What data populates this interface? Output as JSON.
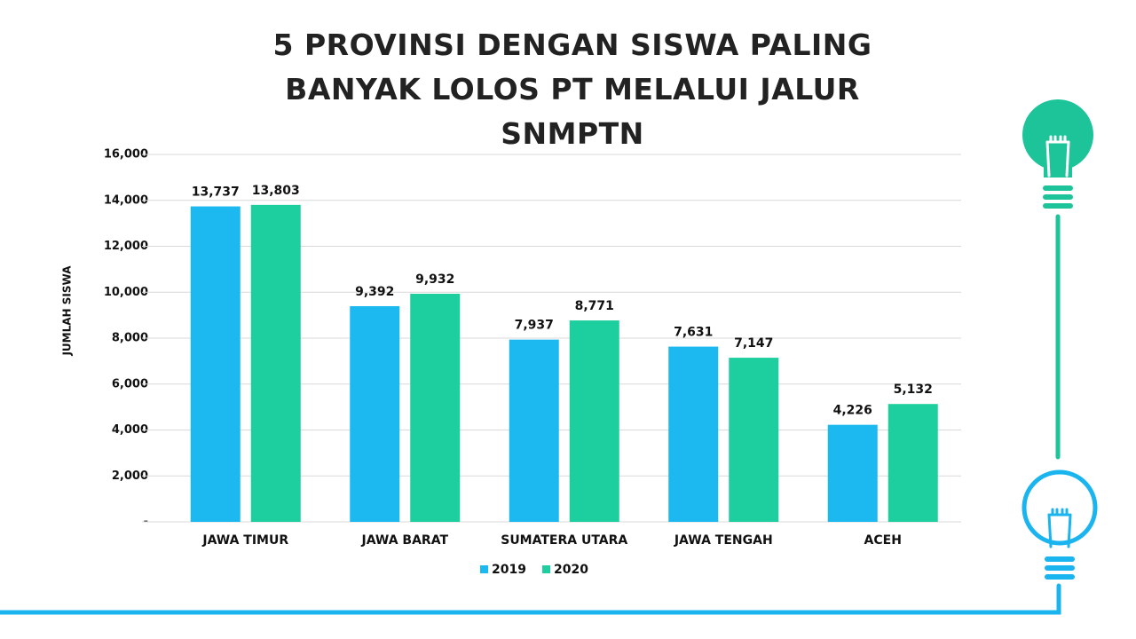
{
  "chart_data": {
    "type": "bar",
    "title": "5 PROVINSI DENGAN SISWA PALING BANYAK LOLOS PT MELALUI JALUR SNMPTN",
    "y_label": "JUMLAH SISWA",
    "categories": [
      "JAWA TIMUR",
      "JAWA BARAT",
      "SUMATERA UTARA",
      "JAWA TENGAH",
      "ACEH"
    ],
    "series": [
      {
        "name": "2019",
        "color": "#1cb9f0",
        "values": [
          13737,
          9392,
          7937,
          7631,
          4226
        ],
        "value_labels": [
          "13,737",
          "9,392",
          "7,937",
          "7,631",
          "4,226"
        ]
      },
      {
        "name": "2020",
        "color": "#1dcf9e",
        "values": [
          13803,
          9932,
          8771,
          7147,
          5132
        ],
        "value_labels": [
          "13,803",
          "9,932",
          "8,771",
          "7,147",
          "5,132"
        ]
      }
    ],
    "ylim": [
      0,
      16000
    ],
    "yticks": [
      {
        "value": 0,
        "label": "-"
      },
      {
        "value": 2000,
        "label": "2,000"
      },
      {
        "value": 4000,
        "label": "4,000"
      },
      {
        "value": 6000,
        "label": "6,000"
      },
      {
        "value": 8000,
        "label": "8,000"
      },
      {
        "value": 10000,
        "label": "10,000"
      },
      {
        "value": 12000,
        "label": "12,000"
      },
      {
        "value": 14000,
        "label": "14,000"
      },
      {
        "value": 16000,
        "label": "16,000"
      }
    ],
    "grid": true,
    "legend": "bottom"
  }
}
